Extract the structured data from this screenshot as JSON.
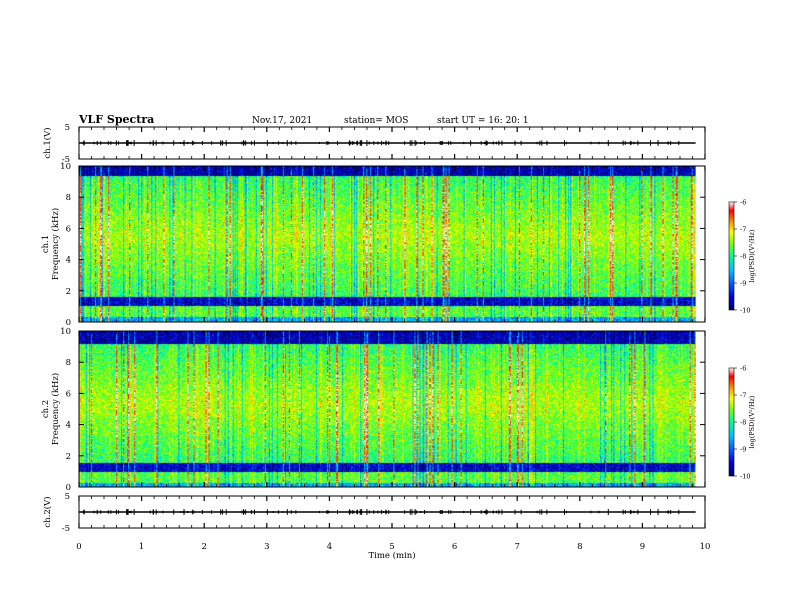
{
  "header": {
    "title": "VLF Spectra",
    "date": "Nov.17, 2021",
    "station": "station= MOS",
    "start": "start UT = 16: 20: 1"
  },
  "colors": {
    "colormap": [
      "#000070",
      "#0000e0",
      "#0060ff",
      "#00c0ff",
      "#00ff90",
      "#80ff00",
      "#ffff00",
      "#ff9000",
      "#ff0000",
      "#ffffff"
    ]
  },
  "chart_data": [
    {
      "id": "ch1-waveform",
      "type": "line",
      "ylabel": "ch.1(V)",
      "ylim": [
        -5,
        5
      ],
      "yticks": [
        "5",
        "-5"
      ],
      "xlim": [
        0,
        10
      ],
      "x": [
        0,
        9.85
      ],
      "y": [
        0,
        0
      ]
    },
    {
      "id": "ch1-spectrogram",
      "type": "heatmap",
      "ylabel": "ch.1\nFrequency (kHz)",
      "ylim": [
        0,
        10
      ],
      "yticks": [
        "0",
        "2",
        "4",
        "6",
        "8",
        "10"
      ],
      "xlim": [
        0,
        10
      ],
      "data_end_x": 9.85,
      "colorbar": {
        "label": "log(PSD)(V²/Hz)",
        "ticks": [
          "-6",
          "-7",
          "-8",
          "-9",
          "-10"
        ],
        "range": [
          -10,
          -6
        ]
      },
      "low_band_khz": [
        0.3,
        1.6
      ],
      "main_band_khz": [
        1.6,
        9.4
      ]
    },
    {
      "id": "ch2-spectrogram",
      "type": "heatmap",
      "ylabel": "ch.2\nFrequency (kHz)",
      "ylim": [
        0,
        10
      ],
      "yticks": [
        "0",
        "2",
        "4",
        "6",
        "8",
        "10"
      ],
      "xlim": [
        0,
        10
      ],
      "data_end_x": 9.85,
      "colorbar": {
        "label": "log(PSD)(V²/Hz)",
        "ticks": [
          "-6",
          "-7",
          "-8",
          "-9",
          "-10"
        ],
        "range": [
          -10,
          -6
        ]
      },
      "low_band_khz": [
        0.2,
        1.5
      ],
      "main_band_khz": [
        1.5,
        9.2
      ]
    },
    {
      "id": "ch2-waveform",
      "type": "line",
      "ylabel": "ch.2(V)",
      "ylim": [
        -5,
        5
      ],
      "yticks": [
        "5",
        "-5"
      ],
      "xlim": [
        0,
        10
      ],
      "x": [
        0,
        9.85
      ],
      "y": [
        0,
        0
      ]
    }
  ],
  "xaxis": {
    "label": "Time (min)",
    "ticks": [
      "0",
      "1",
      "2",
      "3",
      "4",
      "5",
      "6",
      "7",
      "8",
      "9",
      "10"
    ]
  }
}
